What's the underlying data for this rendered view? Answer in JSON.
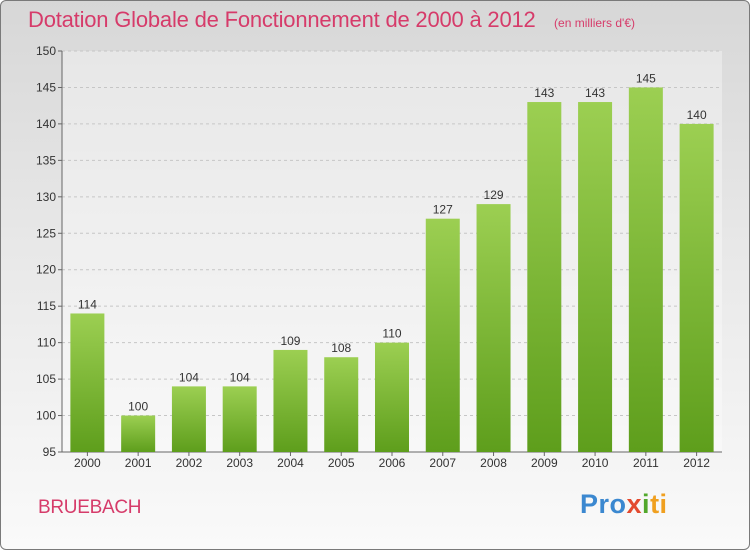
{
  "chart_data": {
    "type": "bar",
    "title": "Dotation Globale de Fonctionnement de 2000 à 2012",
    "subtitle": "(en milliers d'€)",
    "categories": [
      "2000",
      "2001",
      "2002",
      "2003",
      "2004",
      "2005",
      "2006",
      "2007",
      "2008",
      "2009",
      "2010",
      "2011",
      "2012"
    ],
    "values": [
      114,
      100,
      104,
      104,
      109,
      108,
      110,
      127,
      129,
      143,
      143,
      145,
      140
    ],
    "ylim": [
      95,
      150
    ],
    "yticks": [
      95,
      100,
      105,
      110,
      115,
      120,
      125,
      130,
      135,
      140,
      145,
      150
    ],
    "grid": true,
    "xlabel": "",
    "ylabel": "",
    "bar_color_top": "#9ccf52",
    "bar_color_bottom": "#5e9e1c"
  },
  "commune": "BRUEBACH",
  "logo": {
    "p1": "Pro",
    "p2": "x",
    "p3": "i",
    "p4": "ti"
  }
}
